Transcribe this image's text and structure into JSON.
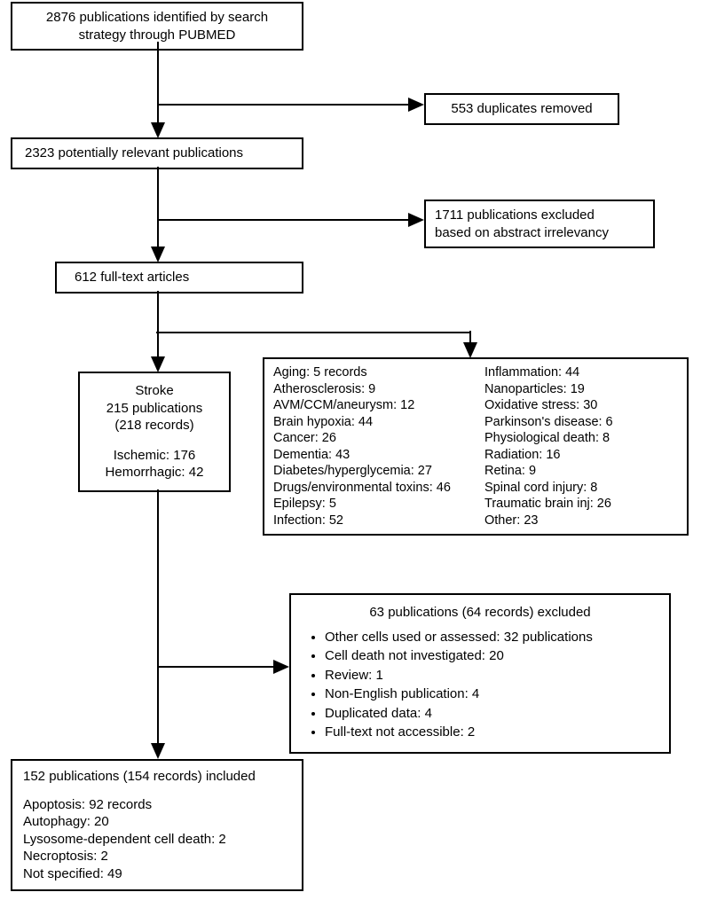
{
  "flowchart": {
    "type": "flowchart",
    "background_color": "#ffffff",
    "border_color": "#000000",
    "border_width": 2,
    "font_family": "Arial",
    "font_size_main": 15,
    "boxes": {
      "identified": {
        "line1": "2876 publications identified by search",
        "line2": "strategy through PUBMED"
      },
      "duplicates": "553 duplicates removed",
      "relevant": "2323 potentially relevant publications",
      "excluded_abstract": {
        "line1": "1711 publications excluded",
        "line2": "based on abstract irrelevancy"
      },
      "fulltext": "612 full-text articles",
      "stroke": {
        "title": "Stroke",
        "line1": "215 publications",
        "line2": "(218 records)",
        "ischemic": "Ischemic: 176",
        "hemorrhagic": "Hemorrhagic: 42"
      },
      "categories": {
        "col1": [
          "Aging: 5 records",
          "Atherosclerosis: 9",
          "AVM/CCM/aneurysm: 12",
          "Brain hypoxia: 44",
          "Cancer: 26",
          "Dementia: 43",
          "Diabetes/hyperglycemia: 27",
          "Drugs/environmental toxins: 46",
          "Epilepsy: 5",
          "Infection: 52"
        ],
        "col2": [
          "Inflammation: 44",
          "Nanoparticles: 19",
          "Oxidative stress: 30",
          "Parkinson's disease: 6",
          "Physiological death: 8",
          "Radiation: 16",
          "Retina: 9",
          "Spinal cord injury: 8",
          "Traumatic brain inj: 26",
          "Other: 23"
        ]
      },
      "excluded_records": {
        "title": "63 publications (64 records) excluded",
        "bullets": [
          "Other cells used or assessed: 32 publications",
          "Cell death not investigated: 20",
          "Review: 1",
          "Non-English publication: 4",
          "Duplicated data: 4",
          "Full-text not accessible: 2"
        ]
      },
      "included": {
        "title": "152 publications (154 records) included",
        "items": [
          "Apoptosis: 92 records",
          "Autophagy: 20",
          "Lysosome-dependent cell death: 2",
          "Necroptosis: 2",
          "Not specified: 49"
        ]
      }
    }
  }
}
